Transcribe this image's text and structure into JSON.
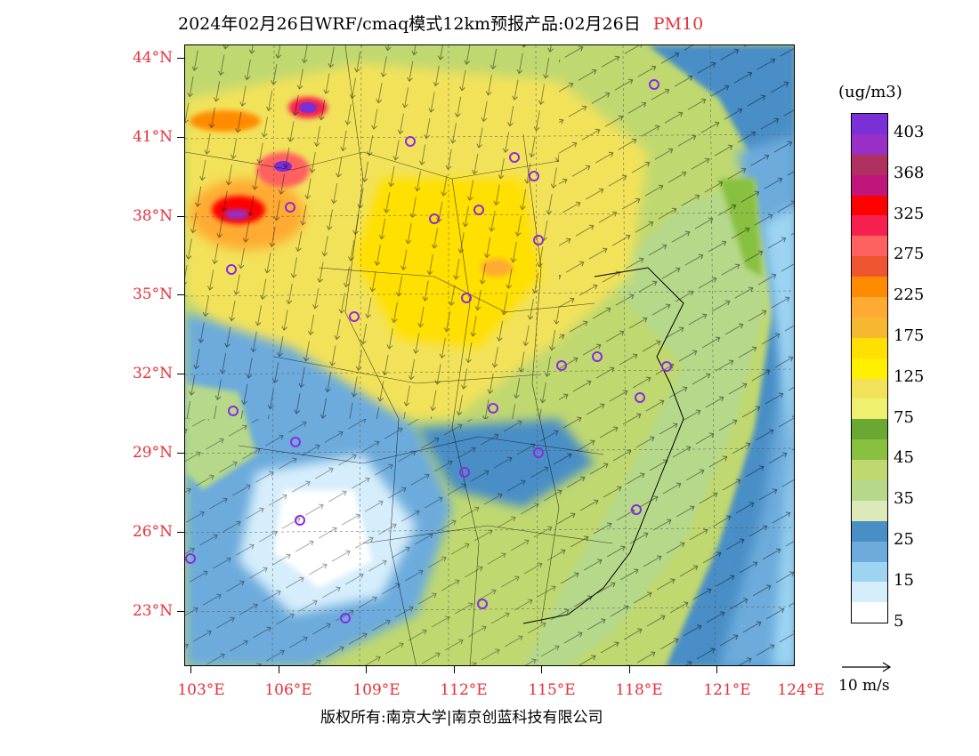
{
  "title": {
    "text": "2024年02月26日WRF/cmaq模式12km预报产品:02月26日",
    "pollutant": "PM10"
  },
  "axes": {
    "lat_labels": [
      "44°N",
      "41°N",
      "38°N",
      "35°N",
      "32°N",
      "29°N",
      "26°N",
      "23°N"
    ],
    "lon_labels": [
      "103°E",
      "106°E",
      "109°E",
      "112°E",
      "115°E",
      "118°E",
      "121°E",
      "124°E"
    ]
  },
  "legend": {
    "units": "(ug/m3)",
    "labels": [
      "403",
      "368",
      "325",
      "275",
      "225",
      "175",
      "125",
      "75",
      "45",
      "35",
      "25",
      "15",
      "5"
    ],
    "colors": [
      "#7b2fd6",
      "#9a2fc8",
      "#b03060",
      "#c0157a",
      "#ff0000",
      "#f52050",
      "#ff6060",
      "#ee5530",
      "#ff8c00",
      "#ffaa33",
      "#f5b830",
      "#ffe000",
      "#fff000",
      "#f2e25a",
      "#f0f070",
      "#6aa832",
      "#88c040",
      "#c0d870",
      "#b5d88a",
      "#dde9b8",
      "#4a8ec6",
      "#6cabdc",
      "#9dd4f2",
      "#d6eefb",
      "#ffffff"
    ]
  },
  "wind": {
    "scale_label": "10 m/s"
  },
  "copyright": "版权所有:南京大学|南京创蓝科技有限公司",
  "colors": {
    "accent": "#e8303a"
  }
}
